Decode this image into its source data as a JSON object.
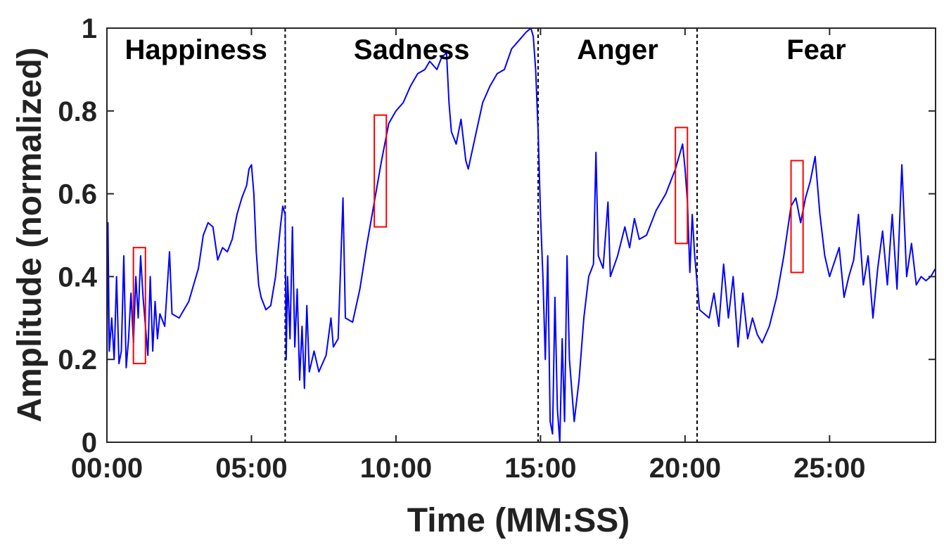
{
  "chart_data": {
    "type": "line",
    "title": "",
    "xlabel": "Time (MM:SS)",
    "ylabel": "Amplitude (normalized)",
    "x_unit": "MM:SS",
    "xlim": [
      "00:00",
      "28:40"
    ],
    "ylim": [
      0,
      1
    ],
    "x_ticks": [
      "00:00",
      "05:00",
      "10:00",
      "15:00",
      "20:00",
      "25:00"
    ],
    "y_ticks": [
      "0",
      "0.2",
      "0.4",
      "0.6",
      "0.8",
      "1"
    ],
    "grid": false,
    "legend": "none",
    "line_color": "#0000ff",
    "box_color": "#ff0000",
    "divider_color": "#000000",
    "regions": [
      {
        "label": "Happiness",
        "start": "00:00",
        "end": "06:10"
      },
      {
        "label": "Sadness",
        "start": "06:10",
        "end": "14:55"
      },
      {
        "label": "Anger",
        "start": "14:55",
        "end": "20:25"
      },
      {
        "label": "Fear",
        "start": "20:25",
        "end": "28:40"
      }
    ],
    "dividers": [
      "06:10",
      "14:55",
      "20:25"
    ],
    "highlight_boxes": [
      {
        "x0": "00:55",
        "x1": "01:20",
        "y0": 0.19,
        "y1": 0.47
      },
      {
        "x0": "09:15",
        "x1": "09:40",
        "y0": 0.52,
        "y1": 0.79
      },
      {
        "x0": "19:40",
        "x1": "20:05",
        "y0": 0.48,
        "y1": 0.76
      },
      {
        "x0": "23:40",
        "x1": "24:05",
        "y0": 0.41,
        "y1": 0.68
      }
    ],
    "series": [
      {
        "points": [
          [
            "00:00",
            0.15
          ],
          [
            "00:02",
            0.53
          ],
          [
            "00:05",
            0.22
          ],
          [
            "00:10",
            0.3
          ],
          [
            "00:15",
            0.2
          ],
          [
            "00:20",
            0.4
          ],
          [
            "00:25",
            0.19
          ],
          [
            "00:30",
            0.22
          ],
          [
            "00:35",
            0.45
          ],
          [
            "00:40",
            0.18
          ],
          [
            "00:45",
            0.25
          ],
          [
            "00:50",
            0.36
          ],
          [
            "00:55",
            0.24
          ],
          [
            "01:00",
            0.4
          ],
          [
            "01:05",
            0.3
          ],
          [
            "01:10",
            0.45
          ],
          [
            "01:15",
            0.35
          ],
          [
            "01:20",
            0.28
          ],
          [
            "01:25",
            0.21
          ],
          [
            "01:30",
            0.4
          ],
          [
            "01:35",
            0.22
          ],
          [
            "01:40",
            0.34
          ],
          [
            "01:45",
            0.25
          ],
          [
            "01:50",
            0.31
          ],
          [
            "02:00",
            0.28
          ],
          [
            "02:10",
            0.46
          ],
          [
            "02:15",
            0.31
          ],
          [
            "02:30",
            0.3
          ],
          [
            "02:50",
            0.34
          ],
          [
            "03:10",
            0.42
          ],
          [
            "03:20",
            0.5
          ],
          [
            "03:30",
            0.53
          ],
          [
            "03:40",
            0.52
          ],
          [
            "03:50",
            0.44
          ],
          [
            "04:00",
            0.47
          ],
          [
            "04:10",
            0.46
          ],
          [
            "04:20",
            0.49
          ],
          [
            "04:30",
            0.55
          ],
          [
            "04:40",
            0.59
          ],
          [
            "04:50",
            0.62
          ],
          [
            "04:55",
            0.66
          ],
          [
            "05:00",
            0.67
          ],
          [
            "05:05",
            0.6
          ],
          [
            "05:10",
            0.46
          ],
          [
            "05:15",
            0.38
          ],
          [
            "05:20",
            0.35
          ],
          [
            "05:30",
            0.32
          ],
          [
            "05:40",
            0.33
          ],
          [
            "05:50",
            0.4
          ],
          [
            "06:00",
            0.52
          ],
          [
            "06:05",
            0.57
          ],
          [
            "06:10",
            0.55
          ],
          [
            "06:12",
            0.2
          ],
          [
            "06:15",
            0.4
          ],
          [
            "06:20",
            0.25
          ],
          [
            "06:25",
            0.52
          ],
          [
            "06:30",
            0.23
          ],
          [
            "06:35",
            0.37
          ],
          [
            "06:40",
            0.15
          ],
          [
            "06:45",
            0.28
          ],
          [
            "06:50",
            0.13
          ],
          [
            "06:55",
            0.33
          ],
          [
            "07:00",
            0.17
          ],
          [
            "07:10",
            0.22
          ],
          [
            "07:20",
            0.17
          ],
          [
            "07:35",
            0.21
          ],
          [
            "07:45",
            0.3
          ],
          [
            "07:50",
            0.23
          ],
          [
            "08:00",
            0.25
          ],
          [
            "08:10",
            0.59
          ],
          [
            "08:15",
            0.3
          ],
          [
            "08:30",
            0.29
          ],
          [
            "08:45",
            0.37
          ],
          [
            "09:00",
            0.48
          ],
          [
            "09:15",
            0.58
          ],
          [
            "09:30",
            0.68
          ],
          [
            "09:45",
            0.77
          ],
          [
            "10:00",
            0.8
          ],
          [
            "10:15",
            0.82
          ],
          [
            "10:30",
            0.86
          ],
          [
            "10:45",
            0.89
          ],
          [
            "11:00",
            0.9
          ],
          [
            "11:10",
            0.92
          ],
          [
            "11:25",
            0.9
          ],
          [
            "11:35",
            0.93
          ],
          [
            "11:45",
            0.94
          ],
          [
            "11:50",
            0.82
          ],
          [
            "11:55",
            0.75
          ],
          [
            "12:05",
            0.72
          ],
          [
            "12:15",
            0.78
          ],
          [
            "12:25",
            0.68
          ],
          [
            "12:30",
            0.66
          ],
          [
            "12:45",
            0.74
          ],
          [
            "13:00",
            0.82
          ],
          [
            "13:15",
            0.86
          ],
          [
            "13:30",
            0.89
          ],
          [
            "13:45",
            0.9
          ],
          [
            "14:00",
            0.95
          ],
          [
            "14:15",
            0.97
          ],
          [
            "14:30",
            0.99
          ],
          [
            "14:40",
            1.0
          ],
          [
            "14:45",
            0.98
          ],
          [
            "14:50",
            0.9
          ],
          [
            "14:55",
            0.75
          ],
          [
            "15:00",
            0.55
          ],
          [
            "15:05",
            0.4
          ],
          [
            "15:10",
            0.2
          ],
          [
            "15:15",
            0.45
          ],
          [
            "15:20",
            0.05
          ],
          [
            "15:25",
            0.02
          ],
          [
            "15:30",
            0.35
          ],
          [
            "15:35",
            0.08
          ],
          [
            "15:40",
            0.0
          ],
          [
            "15:45",
            0.25
          ],
          [
            "15:50",
            0.05
          ],
          [
            "15:55",
            0.45
          ],
          [
            "16:00",
            0.2
          ],
          [
            "16:10",
            0.05
          ],
          [
            "16:20",
            0.15
          ],
          [
            "16:30",
            0.3
          ],
          [
            "16:40",
            0.4
          ],
          [
            "16:50",
            0.43
          ],
          [
            "16:55",
            0.7
          ],
          [
            "17:00",
            0.45
          ],
          [
            "17:10",
            0.42
          ],
          [
            "17:20",
            0.58
          ],
          [
            "17:25",
            0.4
          ],
          [
            "17:40",
            0.45
          ],
          [
            "17:55",
            0.52
          ],
          [
            "18:05",
            0.47
          ],
          [
            "18:15",
            0.54
          ],
          [
            "18:25",
            0.49
          ],
          [
            "18:40",
            0.5
          ],
          [
            "19:00",
            0.56
          ],
          [
            "19:20",
            0.6
          ],
          [
            "19:40",
            0.66
          ],
          [
            "19:55",
            0.72
          ],
          [
            "20:00",
            0.66
          ],
          [
            "20:05",
            0.58
          ],
          [
            "20:10",
            0.41
          ],
          [
            "20:15",
            0.55
          ],
          [
            "20:20",
            0.45
          ],
          [
            "20:30",
            0.32
          ],
          [
            "20:50",
            0.3
          ],
          [
            "21:00",
            0.36
          ],
          [
            "21:10",
            0.28
          ],
          [
            "21:20",
            0.43
          ],
          [
            "21:30",
            0.3
          ],
          [
            "21:40",
            0.4
          ],
          [
            "21:50",
            0.23
          ],
          [
            "22:00",
            0.36
          ],
          [
            "22:10",
            0.25
          ],
          [
            "22:20",
            0.3
          ],
          [
            "22:30",
            0.26
          ],
          [
            "22:40",
            0.24
          ],
          [
            "22:55",
            0.28
          ],
          [
            "23:10",
            0.35
          ],
          [
            "23:25",
            0.45
          ],
          [
            "23:40",
            0.57
          ],
          [
            "23:50",
            0.59
          ],
          [
            "24:00",
            0.53
          ],
          [
            "24:10",
            0.59
          ],
          [
            "24:20",
            0.63
          ],
          [
            "24:30",
            0.69
          ],
          [
            "24:40",
            0.55
          ],
          [
            "24:50",
            0.45
          ],
          [
            "25:00",
            0.4
          ],
          [
            "25:20",
            0.47
          ],
          [
            "25:30",
            0.35
          ],
          [
            "25:40",
            0.4
          ],
          [
            "25:50",
            0.44
          ],
          [
            "26:00",
            0.55
          ],
          [
            "26:10",
            0.38
          ],
          [
            "26:20",
            0.45
          ],
          [
            "26:30",
            0.3
          ],
          [
            "26:40",
            0.42
          ],
          [
            "26:50",
            0.51
          ],
          [
            "27:00",
            0.38
          ],
          [
            "27:10",
            0.55
          ],
          [
            "27:20",
            0.37
          ],
          [
            "27:30",
            0.67
          ],
          [
            "27:40",
            0.4
          ],
          [
            "27:50",
            0.48
          ],
          [
            "28:00",
            0.38
          ],
          [
            "28:10",
            0.4
          ],
          [
            "28:20",
            0.39
          ],
          [
            "28:30",
            0.4
          ],
          [
            "28:40",
            0.42
          ]
        ]
      }
    ]
  }
}
